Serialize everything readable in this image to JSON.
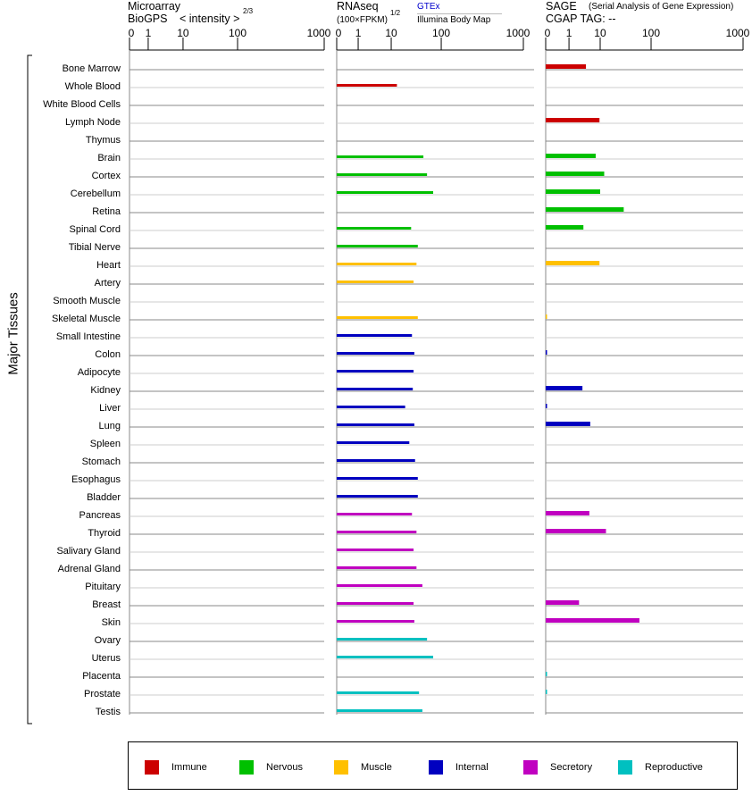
{
  "header": {
    "microarray_title": "Microarray",
    "microarray_sub": "BioGPS",
    "microarray_units": "< intensity >",
    "microarray_exp": "2/3",
    "rnaseq_title": "RNAseq",
    "rnaseq_units": "(100×FPKM)",
    "rnaseq_exp": "1/2",
    "rnaseq_source_link": "GTEx",
    "rnaseq_source2": "Illumina Body Map",
    "sage_title": "SAGE",
    "sage_sub": "(Serial Analysis of Gene Expression)",
    "sage_tag": "CGAP TAG:  --"
  },
  "y_group_label": "Major Tissues",
  "colors": {
    "Immune": "#cc0000",
    "Nervous": "#00c000",
    "Muscle": "#ffc000",
    "Internal": "#0000c0",
    "Secretory": "#c000c0",
    "Reproductive": "#00c0c0"
  },
  "legend": [
    "Immune",
    "Nervous",
    "Muscle",
    "Internal",
    "Secretory",
    "Reproductive"
  ],
  "chart_data": {
    "type": "bar",
    "orientation": "horizontal",
    "axis_ticks": [
      "0",
      "1",
      "10",
      "100",
      "1000"
    ],
    "xlim": [
      0,
      1000
    ],
    "categories": [
      "Bone Marrow",
      "Whole Blood",
      "White Blood Cells",
      "Lymph Node",
      "Thymus",
      "Brain",
      "Cortex",
      "Cerebellum",
      "Retina",
      "Spinal Cord",
      "Tibial Nerve",
      "Heart",
      "Artery",
      "Smooth Muscle",
      "Skeletal Muscle",
      "Small Intestine",
      "Colon",
      "Adipocyte",
      "Kidney",
      "Liver",
      "Lung",
      "Spleen",
      "Stomach",
      "Esophagus",
      "Bladder",
      "Pancreas",
      "Thyroid",
      "Salivary Gland",
      "Adrenal Gland",
      "Pituitary",
      "Breast",
      "Skin",
      "Ovary",
      "Uterus",
      "Placenta",
      "Prostate",
      "Testis"
    ],
    "groups": [
      "Immune",
      "Immune",
      "Immune",
      "Immune",
      "Immune",
      "Nervous",
      "Nervous",
      "Nervous",
      "Nervous",
      "Nervous",
      "Nervous",
      "Muscle",
      "Muscle",
      "Muscle",
      "Muscle",
      "Internal",
      "Internal",
      "Internal",
      "Internal",
      "Internal",
      "Internal",
      "Internal",
      "Internal",
      "Internal",
      "Internal",
      "Secretory",
      "Secretory",
      "Secretory",
      "Secretory",
      "Secretory",
      "Secretory",
      "Secretory",
      "Reproductive",
      "Reproductive",
      "Reproductive",
      "Reproductive",
      "Reproductive"
    ],
    "series": [
      {
        "name": "Microarray",
        "values": [
          null,
          null,
          null,
          null,
          null,
          null,
          null,
          null,
          null,
          null,
          null,
          null,
          null,
          null,
          null,
          null,
          null,
          null,
          null,
          null,
          null,
          null,
          null,
          null,
          null,
          null,
          null,
          null,
          null,
          null,
          null,
          null,
          null,
          null,
          null,
          null,
          null
        ]
      },
      {
        "name": "RNAseq",
        "values": [
          null,
          13,
          null,
          null,
          null,
          44,
          52,
          69,
          null,
          25,
          34,
          32,
          28,
          null,
          34,
          26,
          29,
          28,
          27,
          19,
          29,
          23,
          30,
          34,
          34,
          26,
          32,
          28,
          32,
          42,
          28,
          29,
          52,
          69,
          null,
          36,
          42
        ]
      },
      {
        "name": "SAGE",
        "values": [
          3.5,
          null,
          null,
          9.5,
          null,
          7.2,
          12,
          10,
          29,
          2.9,
          null,
          9.5,
          null,
          null,
          0.05,
          null,
          0.05,
          null,
          2.7,
          0.05,
          4.8,
          null,
          null,
          null,
          null,
          4.5,
          13,
          null,
          null,
          null,
          2.1,
          59,
          null,
          null,
          0.05,
          0.05,
          null
        ]
      }
    ]
  }
}
